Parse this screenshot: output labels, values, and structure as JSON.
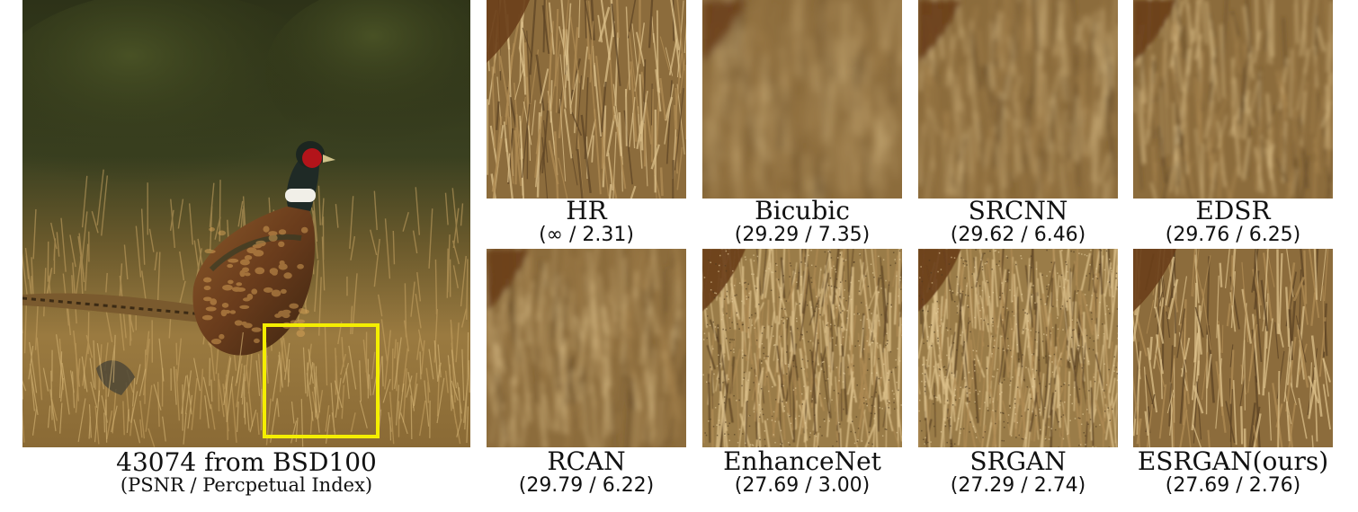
{
  "figure": {
    "main_caption": "43074 from BSD100",
    "main_subcaption": "(PSNR / Percpetual Index)",
    "highlight_color": "#f4ee00",
    "panels": [
      {
        "method": "HR",
        "score": "(∞ / 2.31)",
        "style": "sharp"
      },
      {
        "method": "Bicubic",
        "score": "(29.29 / 7.35)",
        "style": "blur-heavy"
      },
      {
        "method": "SRCNN",
        "score": "(29.62 / 6.46)",
        "style": "blur-medium"
      },
      {
        "method": "EDSR",
        "score": "(29.76 / 6.25)",
        "style": "blur-light"
      },
      {
        "method": "RCAN",
        "score": "(29.79 / 6.22)",
        "style": "blur-medium"
      },
      {
        "method": "EnhanceNet",
        "score": "(27.69 / 3.00)",
        "style": "noisy"
      },
      {
        "method": "SRGAN",
        "score": "(27.29 / 2.74)",
        "style": "noisy"
      },
      {
        "method": "ESRGAN(ours)",
        "score": "(27.69 / 2.76)",
        "style": "sharp"
      }
    ]
  }
}
